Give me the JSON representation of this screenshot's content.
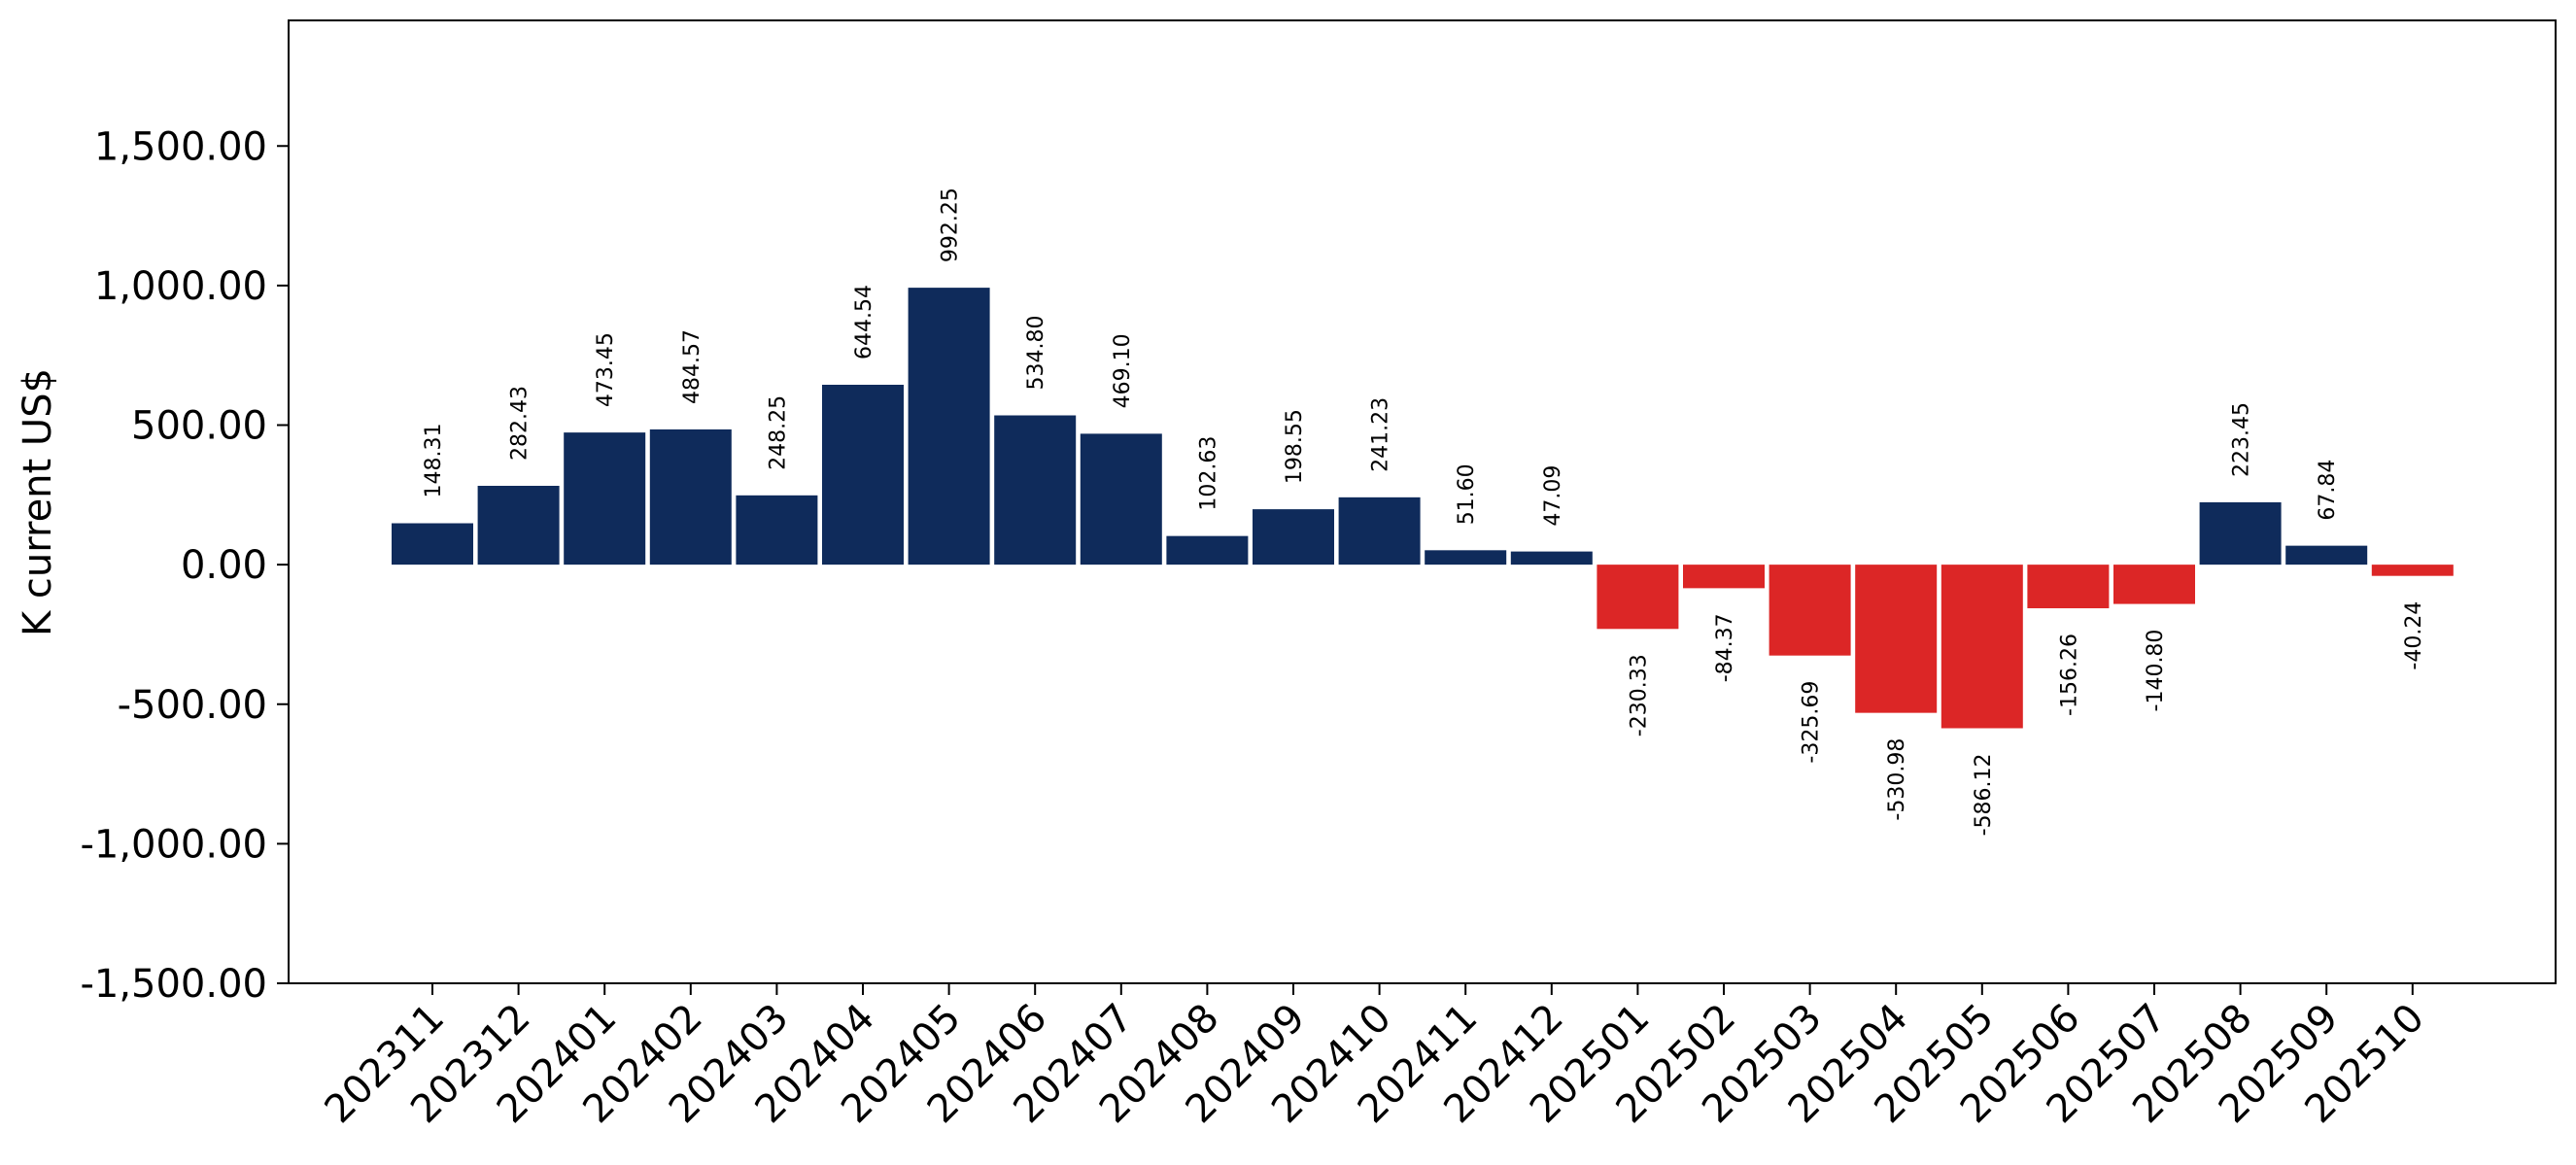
{
  "chart_data": {
    "type": "bar",
    "ylabel": "K current US$",
    "xlabel": "",
    "title": "",
    "ylim": [
      -1500,
      1950
    ],
    "yticks": [
      -1500,
      -1000,
      -500,
      0,
      500,
      1000,
      1500
    ],
    "ytick_labels": [
      "-1,500.00",
      "-1,000.00",
      "-500.00",
      "0.00",
      "500.00",
      "1,000.00",
      "1,500.00"
    ],
    "categories": [
      "202311",
      "202312",
      "202401",
      "202402",
      "202403",
      "202404",
      "202405",
      "202406",
      "202407",
      "202408",
      "202409",
      "202410",
      "202411",
      "202412",
      "202501",
      "202502",
      "202503",
      "202504",
      "202505",
      "202506",
      "202507",
      "202508",
      "202509",
      "202510"
    ],
    "values": [
      148.31,
      282.43,
      473.45,
      484.57,
      248.25,
      644.54,
      992.25,
      534.8,
      469.1,
      102.63,
      198.55,
      241.23,
      51.6,
      47.09,
      -230.33,
      -84.37,
      -325.69,
      -530.98,
      -586.12,
      -156.26,
      -140.8,
      223.45,
      67.84,
      -40.24
    ],
    "value_labels": [
      "148.31",
      "282.43",
      "473.45",
      "484.57",
      "248.25",
      "644.54",
      "992.25",
      "534.80",
      "469.10",
      "102.63",
      "198.55",
      "241.23",
      "51.60",
      "47.09",
      "-230.33",
      "-84.37",
      "-325.69",
      "-530.98",
      "-586.12",
      "-156.26",
      "-140.80",
      "223.45",
      "67.84",
      "-40.24"
    ],
    "colors": {
      "positive": "#0f2b5b",
      "negative": "#dc2626"
    },
    "grid": false,
    "legend": "none"
  }
}
